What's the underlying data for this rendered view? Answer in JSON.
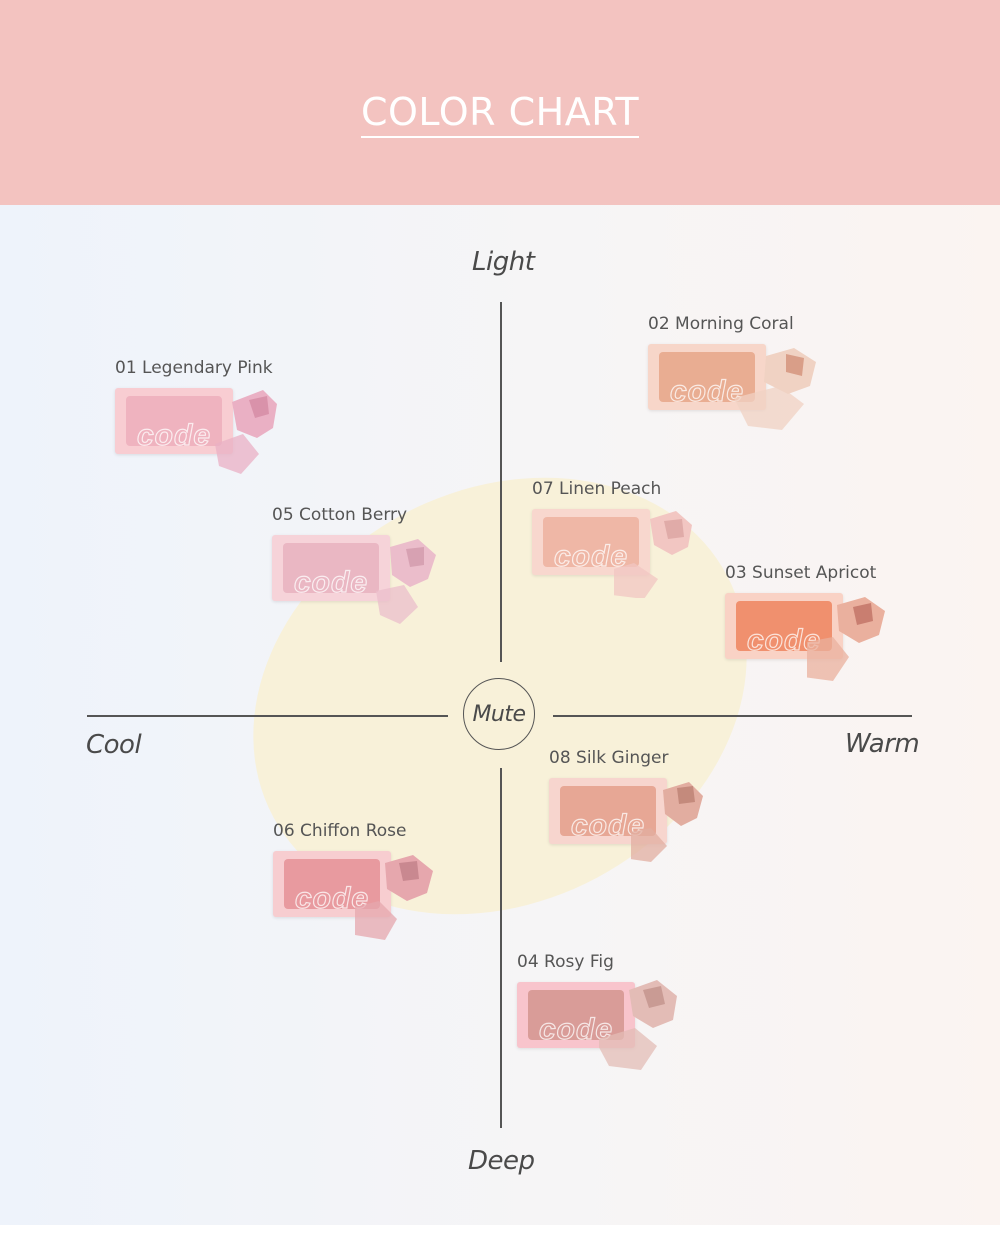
{
  "header": {
    "title": "COLOR CHART",
    "bg_color": "#f3c3c0"
  },
  "axes": {
    "top": "Light",
    "bottom": "Deep",
    "left": "Cool",
    "right": "Warm",
    "center": "Mute"
  },
  "products": [
    {
      "number": "01",
      "name": "Legendary Pink",
      "case_color": "#f8cdd2",
      "pan_color": "#efb3bf",
      "powder_color": "#eab0c4",
      "powder_dark": "#d992aa"
    },
    {
      "number": "02",
      "name": "Morning Coral",
      "case_color": "#f7d6c9",
      "pan_color": "#e9ad92",
      "powder_color": "#f0d2c3",
      "powder_dark": "#d99e88"
    },
    {
      "number": "05",
      "name": "Cotton Berry",
      "case_color": "#f6d3d9",
      "pan_color": "#eab7c3",
      "powder_color": "#ebbdcb",
      "powder_dark": "#d7a1b2"
    },
    {
      "number": "07",
      "name": "Linen Peach",
      "case_color": "#f8d7ce",
      "pan_color": "#efb7a6",
      "powder_color": "#f2c6c2",
      "powder_dark": "#e0aba8"
    },
    {
      "number": "03",
      "name": "Sunset Apricot",
      "case_color": "#f9d2c5",
      "pan_color": "#f0906e",
      "powder_color": "#eab09e",
      "powder_dark": "#c97e70"
    },
    {
      "number": "08",
      "name": "Silk Ginger",
      "case_color": "#f7d5ce",
      "pan_color": "#e7a795",
      "powder_color": "#e2ada0",
      "powder_dark": "#c48a7c"
    },
    {
      "number": "06",
      "name": "Chiffon Rose",
      "case_color": "#f7cdd0",
      "pan_color": "#e89a9f",
      "powder_color": "#e6a7ad",
      "powder_dark": "#c98890"
    },
    {
      "number": "04",
      "name": "Rosy Fig",
      "case_color": "#f8c4cc",
      "pan_color": "#d99c98",
      "powder_color": "#e3bcb6",
      "powder_dark": "#c99b94"
    }
  ],
  "compact_logo": "code",
  "accent_colors": {
    "ellipse": "#f8f1d9",
    "axis": "#555555",
    "text": "#555555"
  }
}
